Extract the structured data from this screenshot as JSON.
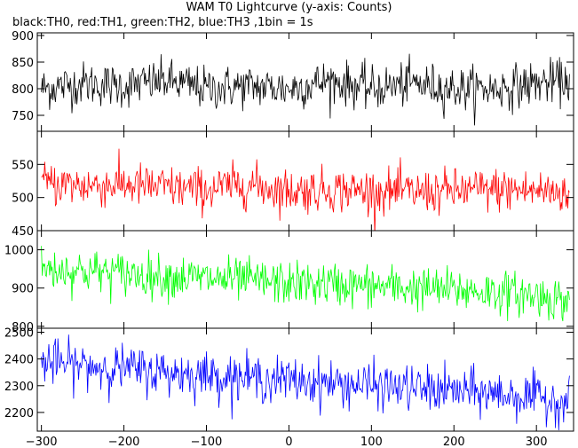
{
  "header": {
    "title": "WAM T0 Lightcurve (y-axis: Counts)",
    "subtitle": "black:TH0, red:TH1, green:TH2, blue:TH3 ,1bin = 1s"
  },
  "chart_data": {
    "type": "line",
    "title": "WAM T0 Lightcurve (y-axis: Counts)",
    "subtitle": "black:TH0, red:TH1, green:TH2, blue:TH3 ,1bin = 1s",
    "ylabel": "Counts",
    "xlim": [
      -305,
      345
    ],
    "x_ticks": [
      -300,
      -200,
      -100,
      0,
      100,
      200,
      300
    ],
    "panels": [
      {
        "name": "TH0",
        "color": "#000000",
        "ylim": [
          720,
          905
        ],
        "y_ticks": [
          750,
          800,
          850,
          900
        ],
        "x": [
          -300,
          -250,
          -200,
          -150,
          -100,
          -50,
          0,
          50,
          100,
          150,
          200,
          250,
          300,
          340
        ],
        "values": [
          800,
          810,
          805,
          815,
          800,
          805,
          800,
          815,
          800,
          810,
          800,
          800,
          810,
          815
        ]
      },
      {
        "name": "TH1",
        "color": "#ff0000",
        "ylim": [
          450,
          600
        ],
        "y_ticks": [
          450,
          500,
          550
        ],
        "x": [
          -300,
          -250,
          -200,
          -150,
          -100,
          -50,
          0,
          50,
          100,
          150,
          200,
          250,
          300,
          340
        ],
        "values": [
          522,
          518,
          520,
          515,
          512,
          520,
          510,
          512,
          510,
          508,
          510,
          512,
          510,
          508
        ]
      },
      {
        "name": "TH2",
        "color": "#00ff00",
        "ylim": [
          795,
          1050
        ],
        "y_ticks": [
          800,
          900,
          1000
        ],
        "x": [
          -300,
          -250,
          -200,
          -150,
          -100,
          -50,
          0,
          50,
          100,
          150,
          200,
          250,
          300,
          340
        ],
        "values": [
          950,
          945,
          938,
          930,
          925,
          920,
          912,
          910,
          905,
          900,
          895,
          890,
          880,
          865
        ]
      },
      {
        "name": "TH3",
        "color": "#0000ff",
        "ylim": [
          2130,
          2515
        ],
        "y_ticks": [
          2200,
          2300,
          2400,
          2500
        ],
        "x": [
          -300,
          -250,
          -200,
          -150,
          -100,
          -50,
          0,
          50,
          100,
          150,
          200,
          250,
          300,
          340
        ],
        "values": [
          2390,
          2375,
          2365,
          2350,
          2340,
          2330,
          2320,
          2310,
          2300,
          2290,
          2280,
          2270,
          2255,
          2240
        ]
      }
    ]
  }
}
